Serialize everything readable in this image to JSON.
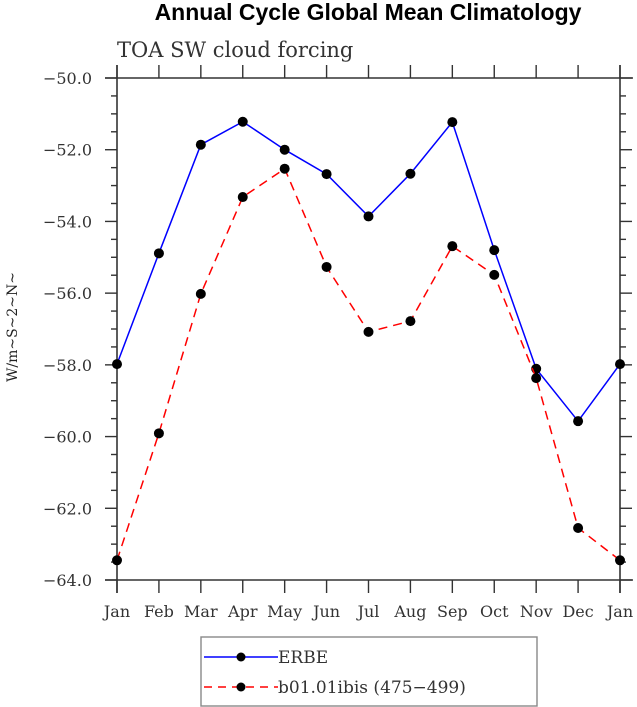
{
  "chart_data": {
    "type": "line",
    "title": "Annual Cycle Global Mean Climatology",
    "subtitle": "TOA SW cloud forcing",
    "xlabel": "",
    "ylabel": "W/m~S~2~N~",
    "categories": [
      "Jan",
      "Feb",
      "Mar",
      "Apr",
      "May",
      "Jun",
      "Jul",
      "Aug",
      "Sep",
      "Oct",
      "Nov",
      "Dec",
      "Jan"
    ],
    "ylim": [
      -64.0,
      -50.0
    ],
    "yticks": [
      "-50.0",
      "-52.0",
      "-54.0",
      "-56.0",
      "-58.0",
      "-60.0",
      "-62.0",
      "-64.0"
    ],
    "ytick_values": [
      -50,
      -52,
      -54,
      -56,
      -58,
      -60,
      -62,
      -64
    ],
    "grid": false,
    "legend_position": "bottom-center",
    "series": [
      {
        "name": "ERBE",
        "color": "#0000ff",
        "dash": "solid",
        "values": [
          -57.98,
          -54.89,
          -51.86,
          -51.22,
          -52.0,
          -52.68,
          -53.86,
          -52.67,
          -51.23,
          -54.8,
          -58.11,
          -59.57,
          -57.98
        ]
      },
      {
        "name": "b01.01ibis (475−499)",
        "color": "#ff0000",
        "dash": "dashed",
        "values": [
          -63.45,
          -59.91,
          -56.02,
          -53.32,
          -52.53,
          -55.27,
          -57.08,
          -56.78,
          -54.69,
          -55.49,
          -58.37,
          -62.55,
          -63.45
        ]
      }
    ]
  }
}
